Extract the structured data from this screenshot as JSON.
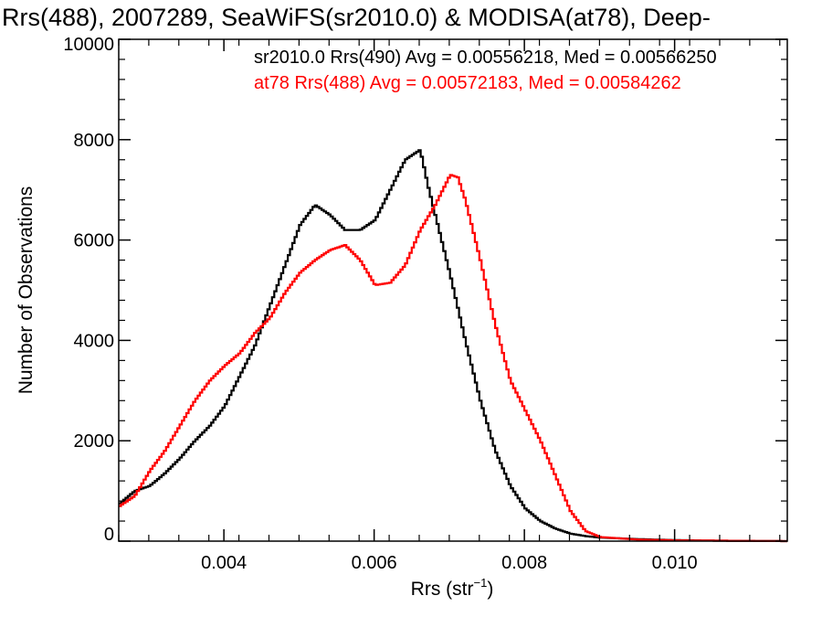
{
  "chart_data": {
    "type": "line",
    "title": "Rrs(488), 2007289, SeaWiFS(sr2010.0) & MODISA(at78), Deep-",
    "xlabel": "Rrs (str",
    "xlabel_sup": "−1",
    "xlabel_close": ")",
    "ylabel": "Number of Observations",
    "xlim": [
      0.0026,
      0.0115
    ],
    "ylim": [
      0,
      10000
    ],
    "xticks": [
      0.004,
      0.006,
      0.008,
      0.01
    ],
    "xtick_labels": [
      "0.004",
      "0.006",
      "0.008",
      "0.010"
    ],
    "yticks": [
      0,
      2000,
      4000,
      6000,
      8000,
      10000
    ],
    "ytick_labels": [
      "0",
      "2000",
      "4000",
      "6000",
      "8000",
      "10000"
    ],
    "grid": false,
    "series": [
      {
        "name": "sr2010.0 Rrs(490) Avg = 0.00556218, Med = 0.00566250",
        "color": "#000000",
        "x": [
          0.0026,
          0.0028,
          0.003,
          0.0032,
          0.0034,
          0.0036,
          0.0038,
          0.004,
          0.0042,
          0.0044,
          0.0046,
          0.0048,
          0.005,
          0.0052,
          0.0054,
          0.0056,
          0.0058,
          0.006,
          0.0062,
          0.0064,
          0.0066,
          0.0067,
          0.0068,
          0.007,
          0.0072,
          0.0074,
          0.0076,
          0.0078,
          0.008,
          0.0082,
          0.0084,
          0.0086,
          0.0088,
          0.009,
          0.0095,
          0.01,
          0.0105,
          0.011,
          0.0115
        ],
        "y": [
          750,
          1000,
          1100,
          1350,
          1650,
          2000,
          2300,
          2700,
          3300,
          3900,
          4700,
          5500,
          6300,
          6700,
          6500,
          6200,
          6200,
          6400,
          7000,
          7600,
          7800,
          7100,
          6500,
          5300,
          4000,
          2800,
          1800,
          1100,
          650,
          400,
          250,
          150,
          100,
          70,
          40,
          20,
          10,
          5,
          0
        ]
      },
      {
        "name": "at78 Rrs(488) Avg = 0.00572183, Med = 0.00584262",
        "color": "#ff0000",
        "x": [
          0.0026,
          0.0028,
          0.003,
          0.0032,
          0.0034,
          0.0036,
          0.0038,
          0.004,
          0.0042,
          0.0044,
          0.0046,
          0.0048,
          0.005,
          0.0052,
          0.0054,
          0.0056,
          0.0058,
          0.006,
          0.0062,
          0.0064,
          0.0066,
          0.0068,
          0.007,
          0.0071,
          0.0072,
          0.0074,
          0.0076,
          0.0078,
          0.008,
          0.0082,
          0.0084,
          0.0086,
          0.0088,
          0.009,
          0.0095,
          0.01,
          0.0105,
          0.011,
          0.0115
        ],
        "y": [
          700,
          900,
          1400,
          1800,
          2300,
          2800,
          3200,
          3500,
          3750,
          4150,
          4450,
          4950,
          5350,
          5600,
          5800,
          5900,
          5600,
          5100,
          5150,
          5500,
          6200,
          6700,
          7300,
          7250,
          6800,
          5600,
          4300,
          3200,
          2600,
          2000,
          1300,
          600,
          200,
          80,
          30,
          15,
          10,
          5,
          0
        ]
      }
    ]
  }
}
